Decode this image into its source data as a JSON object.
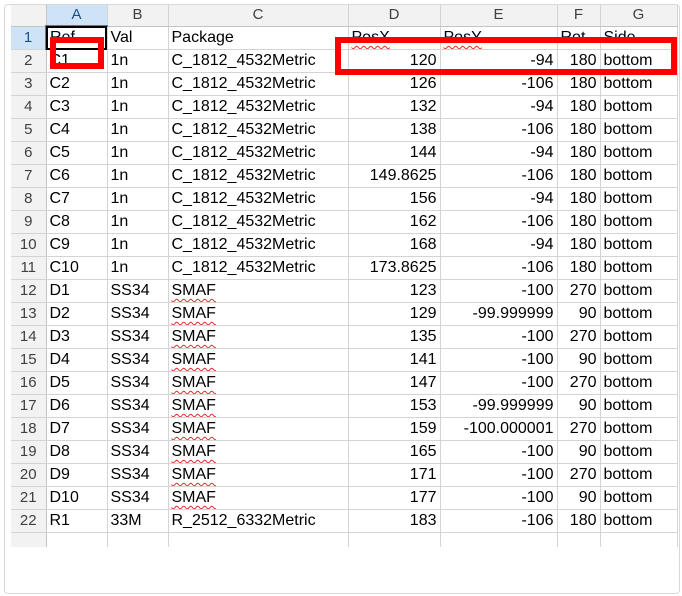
{
  "columns": [
    "A",
    "B",
    "C",
    "D",
    "E",
    "F",
    "G"
  ],
  "rows": [
    {
      "n": "1",
      "cells": [
        "Ref",
        "Val",
        "Package",
        "PosX",
        "PosY",
        "Rot",
        "Side"
      ]
    },
    {
      "n": "2",
      "cells": [
        "C1",
        "1n",
        "C_1812_4532Metric",
        "120",
        "-94",
        "180",
        "bottom"
      ]
    },
    {
      "n": "3",
      "cells": [
        "C2",
        "1n",
        "C_1812_4532Metric",
        "126",
        "-106",
        "180",
        "bottom"
      ]
    },
    {
      "n": "4",
      "cells": [
        "C3",
        "1n",
        "C_1812_4532Metric",
        "132",
        "-94",
        "180",
        "bottom"
      ]
    },
    {
      "n": "5",
      "cells": [
        "C4",
        "1n",
        "C_1812_4532Metric",
        "138",
        "-106",
        "180",
        "bottom"
      ]
    },
    {
      "n": "6",
      "cells": [
        "C5",
        "1n",
        "C_1812_4532Metric",
        "144",
        "-94",
        "180",
        "bottom"
      ]
    },
    {
      "n": "7",
      "cells": [
        "C6",
        "1n",
        "C_1812_4532Metric",
        "149.8625",
        "-106",
        "180",
        "bottom"
      ]
    },
    {
      "n": "8",
      "cells": [
        "C7",
        "1n",
        "C_1812_4532Metric",
        "156",
        "-94",
        "180",
        "bottom"
      ]
    },
    {
      "n": "9",
      "cells": [
        "C8",
        "1n",
        "C_1812_4532Metric",
        "162",
        "-106",
        "180",
        "bottom"
      ]
    },
    {
      "n": "10",
      "cells": [
        "C9",
        "1n",
        "C_1812_4532Metric",
        "168",
        "-94",
        "180",
        "bottom"
      ]
    },
    {
      "n": "11",
      "cells": [
        "C10",
        "1n",
        "C_1812_4532Metric",
        "173.8625",
        "-106",
        "180",
        "bottom"
      ]
    },
    {
      "n": "12",
      "cells": [
        "D1",
        "SS34",
        "SMAF",
        "123",
        "-100",
        "270",
        "bottom"
      ]
    },
    {
      "n": "13",
      "cells": [
        "D2",
        "SS34",
        "SMAF",
        "129",
        "-99.999999",
        "90",
        "bottom"
      ]
    },
    {
      "n": "14",
      "cells": [
        "D3",
        "SS34",
        "SMAF",
        "135",
        "-100",
        "270",
        "bottom"
      ]
    },
    {
      "n": "15",
      "cells": [
        "D4",
        "SS34",
        "SMAF",
        "141",
        "-100",
        "90",
        "bottom"
      ]
    },
    {
      "n": "16",
      "cells": [
        "D5",
        "SS34",
        "SMAF",
        "147",
        "-100",
        "270",
        "bottom"
      ]
    },
    {
      "n": "17",
      "cells": [
        "D6",
        "SS34",
        "SMAF",
        "153",
        "-99.999999",
        "90",
        "bottom"
      ]
    },
    {
      "n": "18",
      "cells": [
        "D7",
        "SS34",
        "SMAF",
        "159",
        "-100.000001",
        "270",
        "bottom"
      ]
    },
    {
      "n": "19",
      "cells": [
        "D8",
        "SS34",
        "SMAF",
        "165",
        "-100",
        "90",
        "bottom"
      ]
    },
    {
      "n": "20",
      "cells": [
        "D9",
        "SS34",
        "SMAF",
        "171",
        "-100",
        "270",
        "bottom"
      ]
    },
    {
      "n": "21",
      "cells": [
        "D10",
        "SS34",
        "SMAF",
        "177",
        "-100",
        "90",
        "bottom"
      ]
    },
    {
      "n": "22",
      "cells": [
        "R1",
        "33M",
        "R_2512_6332Metric",
        "183",
        "-106",
        "180",
        "bottom"
      ]
    }
  ],
  "colors": {
    "highlight_box": "#ff0000",
    "selection": "#cfe3f6",
    "spellcheck": "#e02b2b"
  }
}
